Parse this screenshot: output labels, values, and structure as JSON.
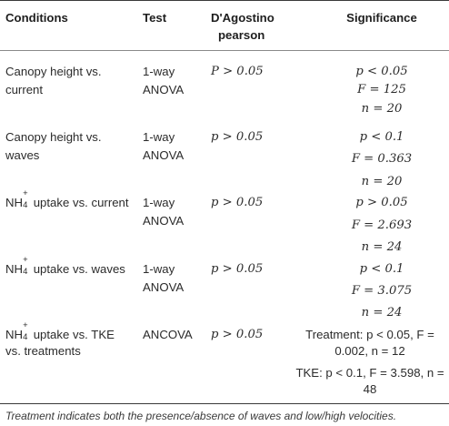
{
  "table": {
    "headers": {
      "conditions": "Conditions",
      "test": "Test",
      "dagostino_line1": "D'Agostino",
      "dagostino_line2": "pearson",
      "significance": "Significance"
    },
    "rows": [
      {
        "condition_lines": [
          "Canopy height vs.",
          "current"
        ],
        "test_lines": [
          "1-way",
          "ANOVA"
        ],
        "dagostino": "P > 0.05",
        "significance_lines": [
          "p < 0.05",
          "F = 125",
          "n = 20"
        ]
      },
      {
        "condition_lines": [
          "Canopy height vs.",
          "waves"
        ],
        "test_lines": [
          "1-way",
          "ANOVA"
        ],
        "dagostino": "p > 0.05",
        "significance_lines": [
          "p < 0.1",
          "F = 0.363",
          "n = 20"
        ]
      },
      {
        "condition_prefix": "NH",
        "condition_sup": "+",
        "condition_sub": "4",
        "condition_rest": " uptake vs. current",
        "test_lines": [
          "1-way",
          "ANOVA"
        ],
        "dagostino": "p > 0.05",
        "significance_lines": [
          "p > 0.05",
          "F = 2.693",
          "n = 24"
        ]
      },
      {
        "condition_prefix": "NH",
        "condition_sup": "+",
        "condition_sub": "4",
        "condition_rest": " uptake vs. waves",
        "test_lines": [
          "1-way",
          "ANOVA"
        ],
        "dagostino": "p > 0.05",
        "significance_lines": [
          "p < 0.1",
          "F = 3.075",
          "n = 24"
        ]
      },
      {
        "condition_prefix": "NH",
        "condition_sup": "+",
        "condition_sub": "4",
        "condition_rest": " uptake vs. TKE",
        "condition_line2": "vs. treatments",
        "test_lines": [
          "ANCOVA"
        ],
        "dagostino": "p > 0.05",
        "significance_lines": [
          "Treatment: p < 0.05, F =",
          "0.002, n = 12",
          "TKE: p < 0.1, F = 3.598, n =",
          "48"
        ]
      }
    ]
  },
  "footnote": "Treatment indicates both the presence/absence of waves and low/high velocities."
}
